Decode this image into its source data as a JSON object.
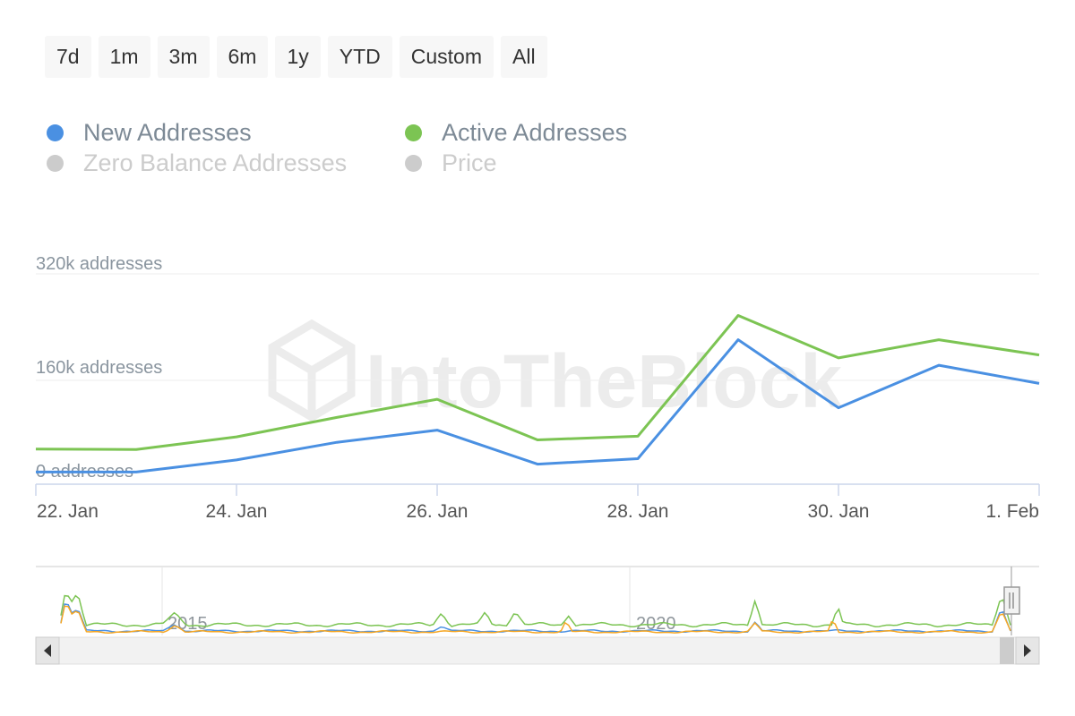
{
  "range_selector": {
    "buttons": [
      "7d",
      "1m",
      "3m",
      "6m",
      "1y",
      "YTD",
      "Custom",
      "All"
    ]
  },
  "legend": [
    {
      "label": "New Addresses",
      "color": "#4a90e2",
      "visible": true
    },
    {
      "label": "Active Addresses",
      "color": "#7cc453",
      "visible": true
    },
    {
      "label": "Zero Balance Addresses",
      "color": "#cccccc",
      "visible": false
    },
    {
      "label": "Price",
      "color": "#cccccc",
      "visible": false
    }
  ],
  "watermark": "IntoTheBlock",
  "chart_data": {
    "type": "line",
    "x": [
      "2021-01-22",
      "2021-01-23",
      "2021-01-24",
      "2021-01-25",
      "2021-01-26",
      "2021-01-27",
      "2021-01-28",
      "2021-01-29",
      "2021-01-30",
      "2021-01-31",
      "2021-02-01"
    ],
    "series": [
      {
        "name": "New Addresses",
        "color": "#4a90e2",
        "values": [
          20000,
          20000,
          40000,
          69000,
          89000,
          33000,
          42000,
          238000,
          126000,
          196000,
          166000
        ]
      },
      {
        "name": "Active Addresses",
        "color": "#7cc453",
        "values": [
          58000,
          57000,
          78000,
          110000,
          140000,
          73000,
          79000,
          278000,
          208000,
          238000,
          213000
        ]
      }
    ],
    "ylim": [
      0,
      320000
    ],
    "y_ticks": [
      {
        "value": 0,
        "label": "0 addresses"
      },
      {
        "value": 160000,
        "label": "160k addresses"
      },
      {
        "value": 320000,
        "label": "320k addresses"
      }
    ],
    "x_ticks": [
      {
        "date": "2021-01-22",
        "label": "22. Jan"
      },
      {
        "date": "2021-01-24",
        "label": "24. Jan"
      },
      {
        "date": "2021-01-26",
        "label": "26. Jan"
      },
      {
        "date": "2021-01-28",
        "label": "28. Jan"
      },
      {
        "date": "2021-01-30",
        "label": "30. Jan"
      },
      {
        "date": "2021-02-01",
        "label": "1. Feb"
      }
    ],
    "grid": true,
    "legend_position": "top-left"
  },
  "navigator": {
    "labels": [
      "2015",
      "2020"
    ],
    "series_colors": [
      "#7cc453",
      "#4a90e2",
      "#f5a623"
    ]
  }
}
